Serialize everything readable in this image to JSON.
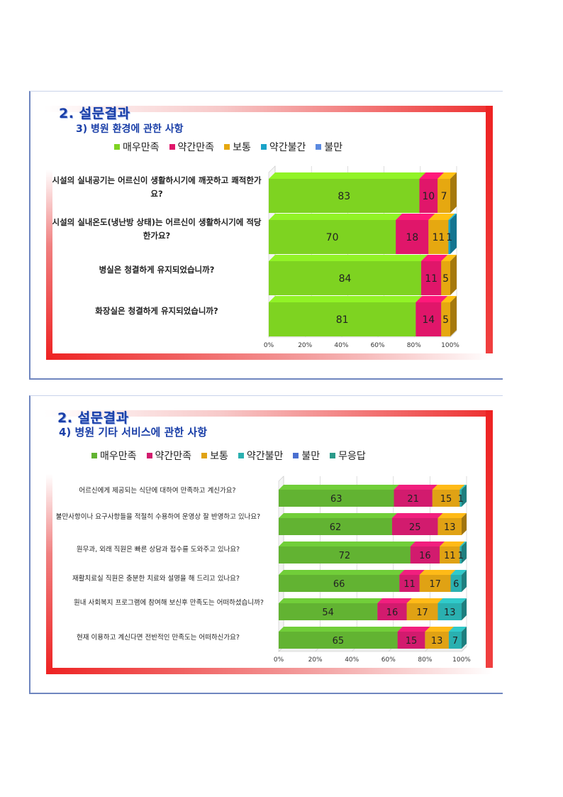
{
  "slide1": {
    "title": "2. 설문결과",
    "subtitle": "3) 병원 환경에 관한 사항",
    "chart_data": {
      "type": "bar",
      "stacked": true,
      "orientation": "horizontal",
      "categories": [
        "시설의 실내공기는 어르신이 생활하시기에 깨끗하고 쾌적한가요?",
        "시설의 실내온도(냉난방 상태)는 어르신이 생활하시기에 적당한가요?",
        "병실은 청결하게 유지되었습니까?",
        "화장실은 청결하게 유지되었습니까?"
      ],
      "series": [
        {
          "name": "매우만족",
          "color": "#7ed321",
          "values": [
            83,
            70,
            84,
            81
          ]
        },
        {
          "name": "약간만족",
          "color": "#e0166a",
          "values": [
            10,
            18,
            11,
            14
          ]
        },
        {
          "name": "보통",
          "color": "#e6a810",
          "values": [
            7,
            11,
            5,
            5
          ]
        },
        {
          "name": "약간불간",
          "color": "#1aa3c8",
          "values": [
            0,
            1,
            0,
            0
          ]
        },
        {
          "name": "불만",
          "color": "#5b8ae0",
          "values": [
            0,
            0,
            0,
            0
          ]
        }
      ],
      "xlim": [
        0,
        100
      ],
      "xticks": [
        "0%",
        "20%",
        "40%",
        "60%",
        "80%",
        "100%"
      ],
      "legend": "top",
      "grid": true
    }
  },
  "slide2": {
    "title": "2. 설문결과",
    "subtitle": "4) 병원 기타 서비스에 관한 사항",
    "chart_data": {
      "type": "bar",
      "stacked": true,
      "orientation": "horizontal",
      "categories": [
        "어르신에게 제공되는 식단에 대하여 만족하고 계신가요?",
        "불만사항이나 요구사항들을 적절히 수용하여 운영상 잘 반영하고 있나요?",
        "원무과, 외래 직원은 빠른 상담과 접수를 도와주고 있나요?",
        "재활치료실 직원은 충분한 치료와 설명을 해 드리고 있나요?",
        "원내 사회복지 프로그램에 참여해 보신후 만족도는 어떠하셨습니까?",
        "현재 이용하고 계신다면 전반적인 만족도는 어떠하신가요?"
      ],
      "series": [
        {
          "name": "매우만족",
          "color": "#62b332",
          "values": [
            63,
            62,
            72,
            66,
            54,
            65
          ]
        },
        {
          "name": "약간만족",
          "color": "#d21b6e",
          "values": [
            21,
            25,
            16,
            11,
            16,
            15
          ]
        },
        {
          "name": "보통",
          "color": "#e0a214",
          "values": [
            15,
            13,
            11,
            17,
            17,
            13
          ]
        },
        {
          "name": "약간불만",
          "color": "#2ab0b0",
          "values": [
            1,
            0,
            1,
            6,
            13,
            7
          ]
        },
        {
          "name": "불만",
          "color": "#4a6fd0",
          "values": [
            0,
            0,
            0,
            0,
            0,
            0
          ]
        },
        {
          "name": "무응답",
          "color": "#2a9a8a",
          "values": [
            0,
            0,
            0,
            0,
            0,
            0
          ]
        }
      ],
      "xlim": [
        0,
        100
      ],
      "xticks": [
        "0%",
        "20%",
        "40%",
        "60%",
        "80%",
        "100%"
      ],
      "legend": "top",
      "grid": true
    }
  }
}
